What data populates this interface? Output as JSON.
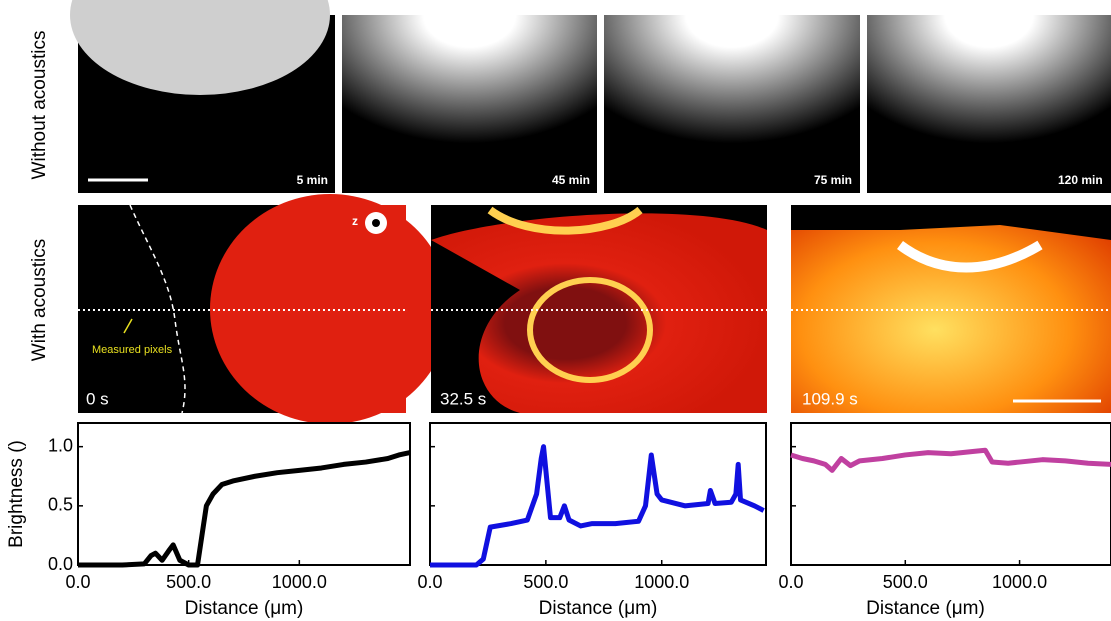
{
  "row_labels": [
    "Without acoustics",
    "With acoustics"
  ],
  "top_panels": [
    {
      "time": "5 min"
    },
    {
      "time": "45 min"
    },
    {
      "time": "75 min"
    },
    {
      "time": "120 min"
    }
  ],
  "bottom_panels": [
    {
      "time": "0 s",
      "annotation": "Measured pixels",
      "axis": "z"
    },
    {
      "time": "32.5 s"
    },
    {
      "time": "109.9 s"
    }
  ],
  "chart_data": [
    {
      "type": "line",
      "xlabel": "Distance (μm)",
      "ylabel": "Brightness ()",
      "color": "#000000",
      "x": [
        0,
        100,
        200,
        300,
        330,
        350,
        380,
        410,
        430,
        460,
        500,
        540,
        560,
        580,
        610,
        650,
        700,
        800,
        900,
        1000,
        1100,
        1200,
        1300,
        1400,
        1450,
        1500
      ],
      "values": [
        0,
        0,
        0,
        0.01,
        0.08,
        0.1,
        0.04,
        0.12,
        0.17,
        0.04,
        0,
        0,
        0.25,
        0.5,
        0.6,
        0.68,
        0.71,
        0.75,
        0.78,
        0.8,
        0.82,
        0.85,
        0.87,
        0.9,
        0.93,
        0.95
      ],
      "xlim": [
        0,
        1500
      ],
      "ylim": [
        0,
        1.2
      ],
      "xticks": [
        {
          "value": 0,
          "label": "0.0"
        },
        {
          "value": 500,
          "label": "500.0"
        },
        {
          "value": 1000,
          "label": "1000.0"
        }
      ],
      "yticks": [
        {
          "value": 0,
          "label": "0.0"
        },
        {
          "value": 0.5,
          "label": "0.5"
        },
        {
          "value": 1,
          "label": "1.0"
        }
      ]
    },
    {
      "type": "line",
      "xlabel": "Distance (μm)",
      "color": "#1010e0",
      "x": [
        0,
        100,
        200,
        230,
        260,
        350,
        420,
        460,
        480,
        490,
        500,
        520,
        560,
        580,
        600,
        650,
        700,
        800,
        900,
        930,
        955,
        980,
        1000,
        1100,
        1200,
        1210,
        1230,
        1300,
        1320,
        1330,
        1340,
        1400,
        1440
      ],
      "values": [
        0,
        0,
        0,
        0.05,
        0.32,
        0.35,
        0.38,
        0.6,
        0.9,
        1.0,
        0.8,
        0.4,
        0.4,
        0.5,
        0.38,
        0.33,
        0.35,
        0.35,
        0.37,
        0.5,
        0.93,
        0.6,
        0.55,
        0.5,
        0.52,
        0.63,
        0.52,
        0.53,
        0.6,
        0.85,
        0.55,
        0.5,
        0.46
      ],
      "xlim": [
        0,
        1450
      ],
      "ylim": [
        0,
        1.2
      ],
      "xticks": [
        {
          "value": 0,
          "label": "0.0"
        },
        {
          "value": 500,
          "label": "500.0"
        },
        {
          "value": 1000,
          "label": "1000.0"
        }
      ],
      "yticks": [
        {
          "value": 0,
          "label": "0.0"
        },
        {
          "value": 0.5,
          "label": "0.5"
        },
        {
          "value": 1,
          "label": "1.0"
        }
      ]
    },
    {
      "type": "line",
      "xlabel": "Distance (μm)",
      "color": "#c040a0",
      "x": [
        0,
        50,
        100,
        150,
        180,
        220,
        260,
        300,
        400,
        500,
        600,
        700,
        800,
        850,
        880,
        950,
        1000,
        1100,
        1200,
        1300,
        1400
      ],
      "values": [
        0.93,
        0.9,
        0.88,
        0.85,
        0.8,
        0.9,
        0.84,
        0.88,
        0.9,
        0.93,
        0.95,
        0.94,
        0.96,
        0.97,
        0.87,
        0.86,
        0.87,
        0.89,
        0.88,
        0.86,
        0.85
      ],
      "xlim": [
        0,
        1400
      ],
      "ylim": [
        0,
        1.2
      ],
      "xticks": [
        {
          "value": 0,
          "label": "0.0"
        },
        {
          "value": 500,
          "label": "500.0"
        },
        {
          "value": 1000,
          "label": "1000.0"
        }
      ],
      "yticks": [
        {
          "value": 0,
          "label": "0.0"
        },
        {
          "value": 0.5,
          "label": "0.5"
        },
        {
          "value": 1,
          "label": "1.0"
        }
      ]
    }
  ]
}
